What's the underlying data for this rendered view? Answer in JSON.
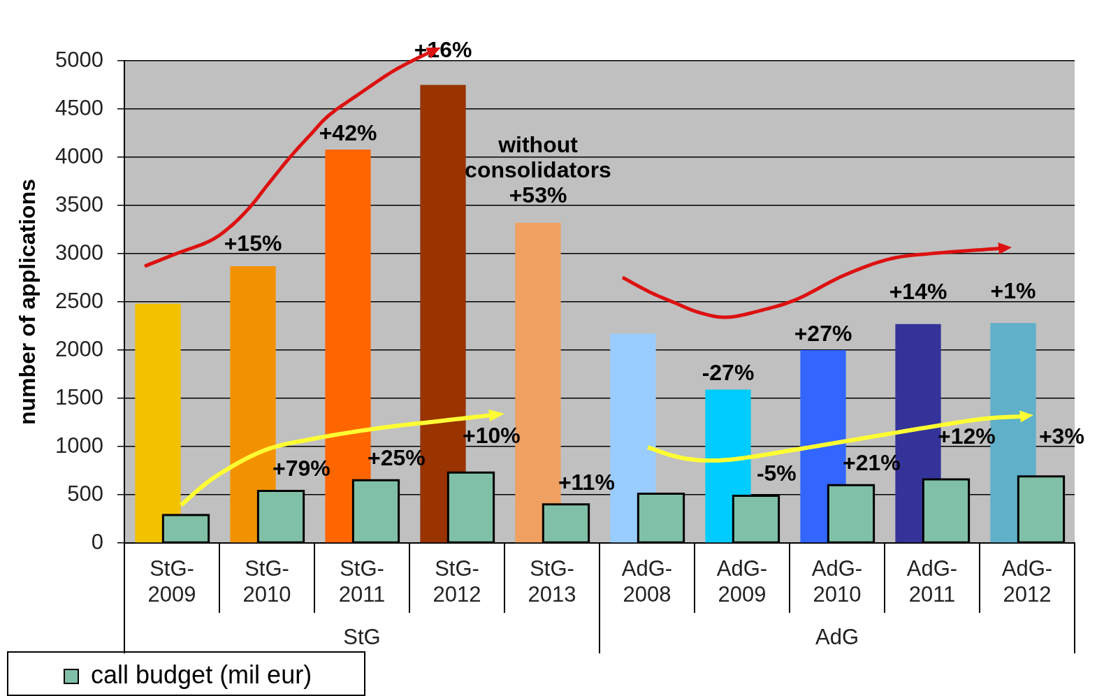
{
  "chart_data": {
    "type": "bar",
    "ylabel": "number of applications",
    "categories": [
      "StG-2009",
      "StG-2010",
      "StG-2011",
      "StG-2012",
      "StG-2013",
      "AdG-2008",
      "AdG-2009",
      "AdG-2010",
      "AdG-2011",
      "AdG-2012"
    ],
    "ylim": [
      0,
      5000
    ],
    "yticks": [
      0,
      500,
      1000,
      1500,
      2000,
      2500,
      3000,
      3500,
      4000,
      4500,
      5000
    ],
    "grid": "y",
    "legend": "bottom left",
    "annotations": [
      "StG",
      "AdG",
      {
        "text": "+15%",
        "x": "StG-2010",
        "y": 2870
      },
      {
        "text": "+42%",
        "x": "StG-2011",
        "y": 4080
      },
      {
        "text": "+16%",
        "x": "StG-2012",
        "y": 4750
      },
      {
        "text": "without consolidators +53%",
        "x": "StG-2013",
        "y": 3320
      },
      {
        "text": "-27%",
        "x": "AdG-2009",
        "y": 1590
      },
      {
        "text": "+27%",
        "x": "AdG-2010",
        "y": 2000
      },
      {
        "text": "+14%",
        "x": "AdG-2011",
        "y": 2270
      },
      {
        "text": "+1%",
        "x": "AdG-2012",
        "y": 2280
      },
      {
        "text": "+79%",
        "x": "StG-2010",
        "y": 540
      },
      {
        "text": "+25%",
        "x": "StG-2011",
        "y": 650
      },
      {
        "text": "+10%",
        "x": "StG-2012",
        "y": 730
      },
      {
        "text": "+11%",
        "x": "StG-2013",
        "y": 400
      },
      {
        "text": "-5%",
        "x": "AdG-2009",
        "y": 490
      },
      {
        "text": "+21%",
        "x": "AdG-2010",
        "y": 600
      },
      {
        "text": "+12%",
        "x": "AdG-2011",
        "y": 660
      },
      {
        "text": "+3%",
        "x": "AdG-2012",
        "y": 690
      }
    ],
    "series": [
      {
        "colors": [
          "#f2c200",
          "#f39200",
          "#ff6600",
          "#993300",
          "#f0a060",
          "#99ccff",
          "#00ccff",
          "#3366ff",
          "#333399",
          "#5fb0c8"
        ],
        "values": [
          2480,
          2870,
          4080,
          4750,
          3320,
          2170,
          1590,
          2000,
          2270,
          2280
        ]
      },
      {
        "name": "call budget (mil eur)",
        "color": "#80c0a6",
        "values": [
          290,
          540,
          650,
          730,
          400,
          510,
          490,
          600,
          660,
          690
        ]
      }
    ]
  }
}
